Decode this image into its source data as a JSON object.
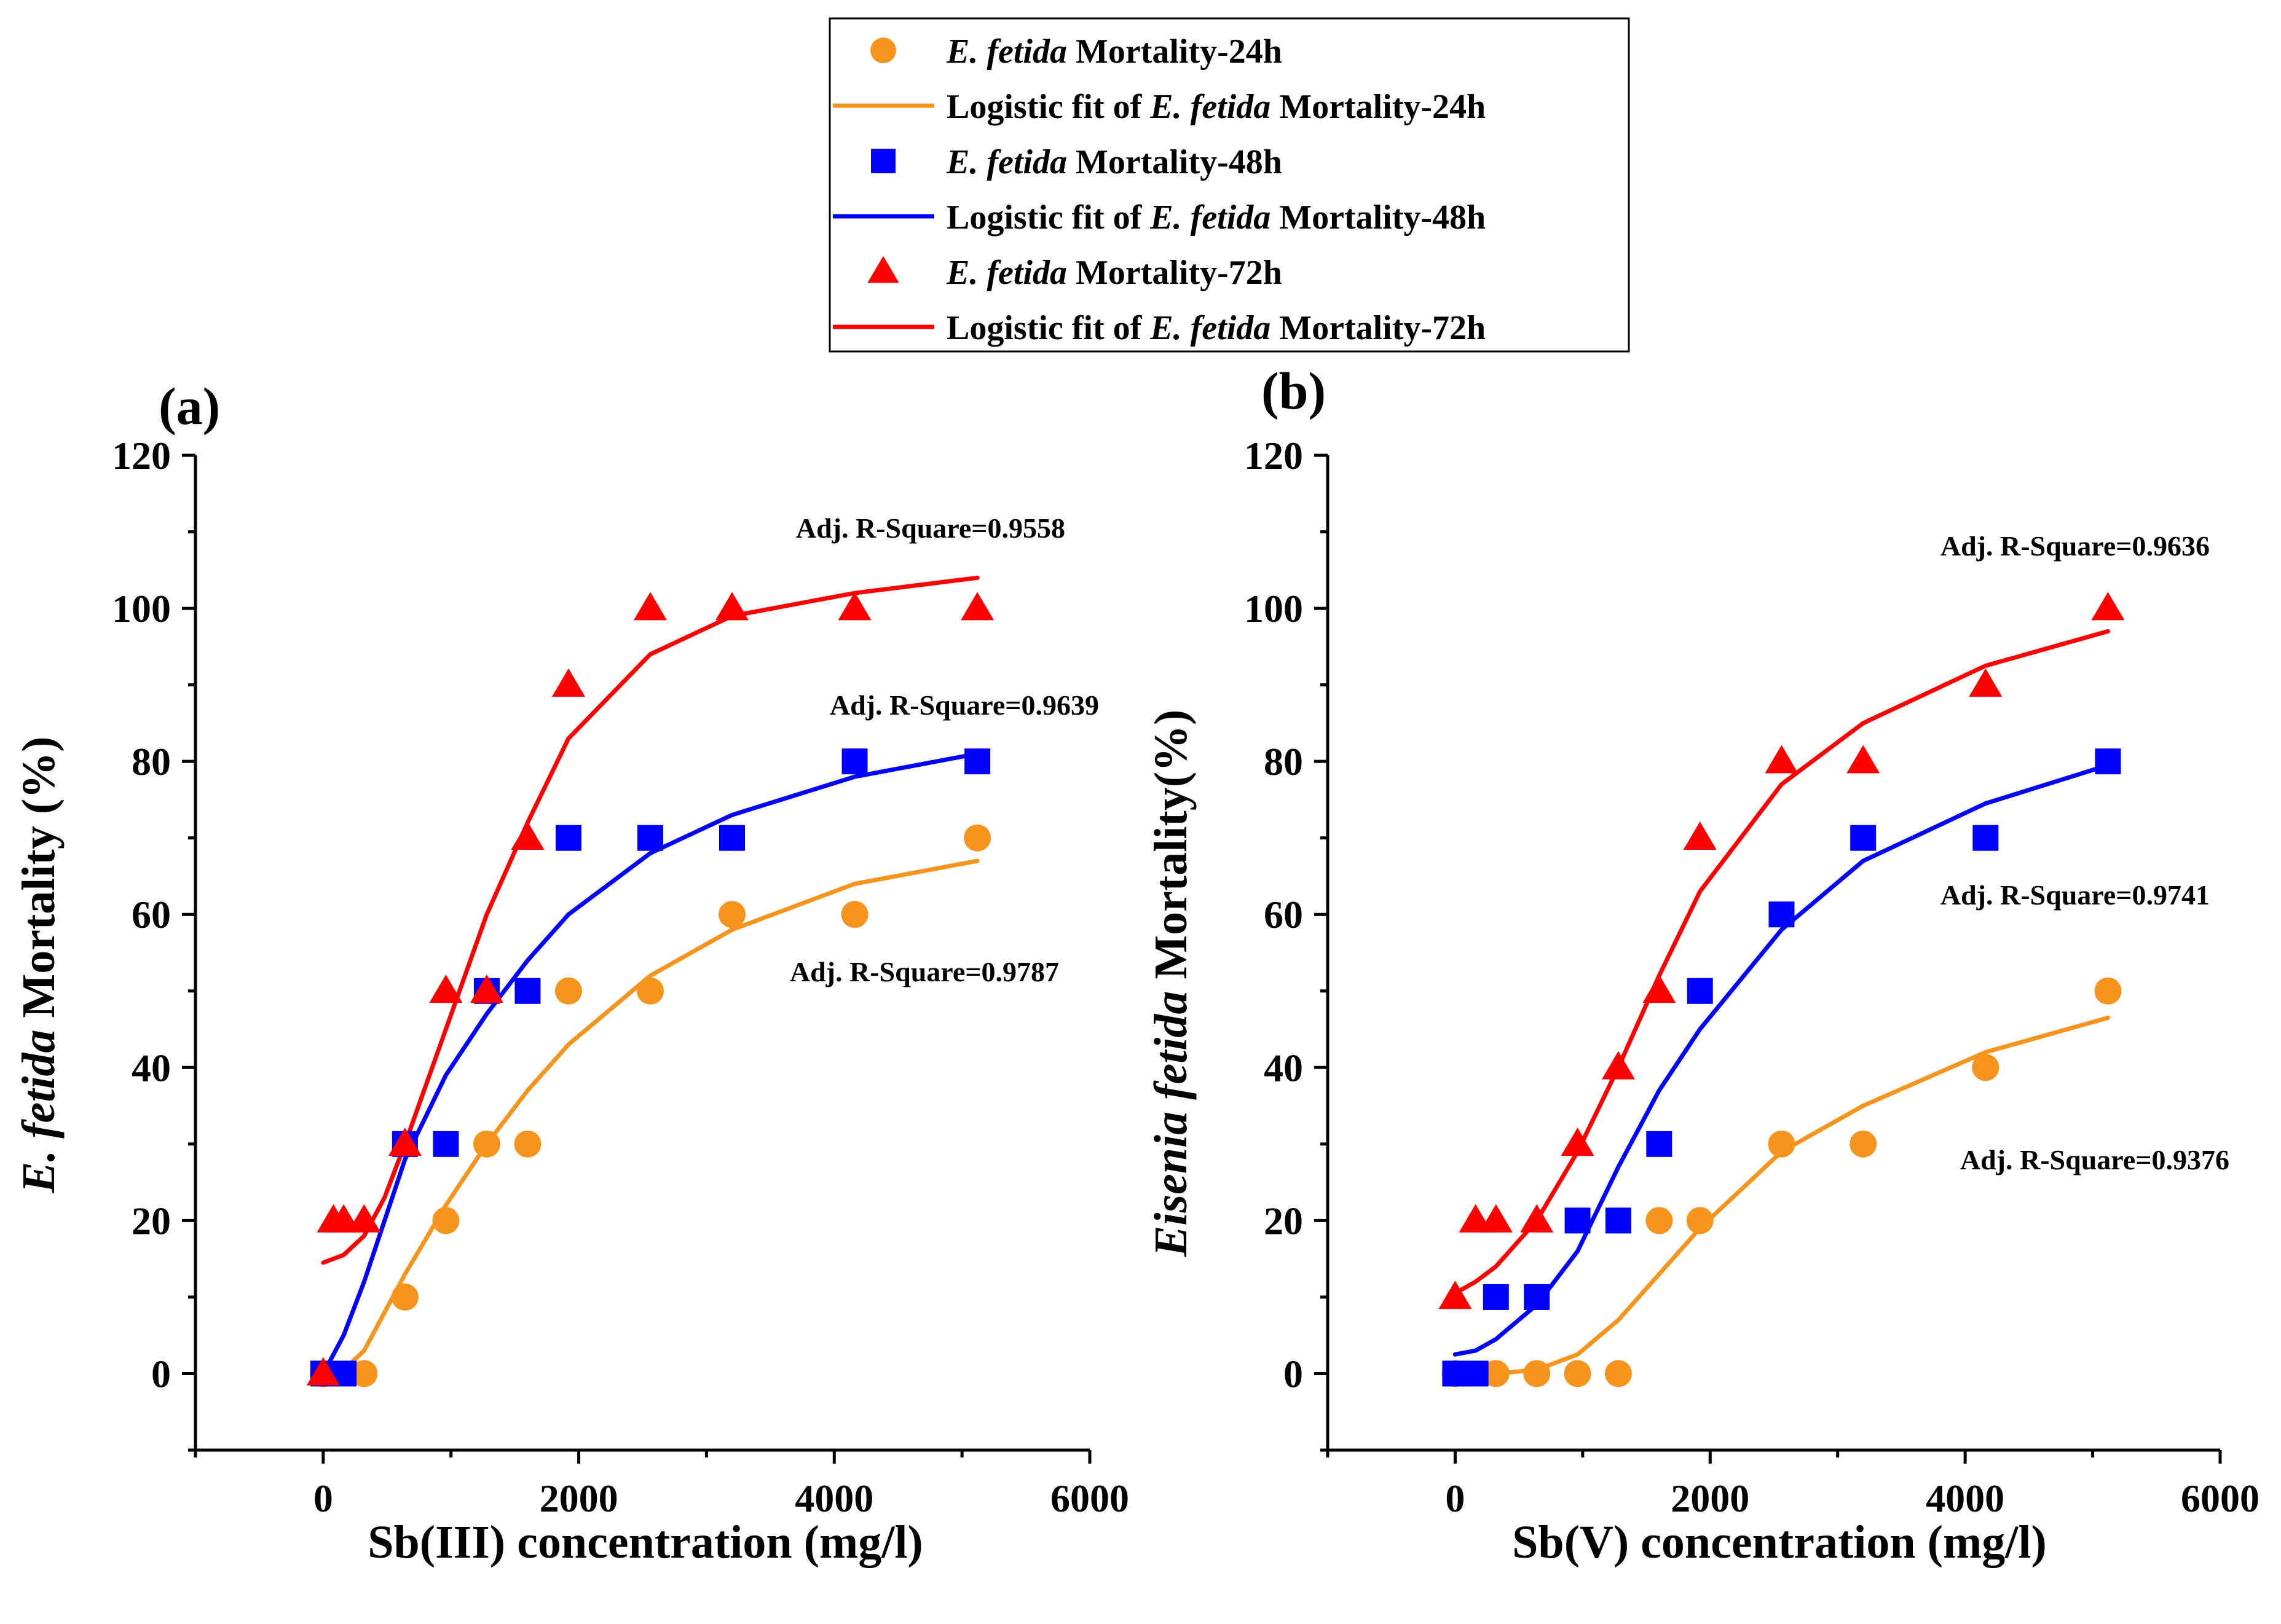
{
  "legend": {
    "entries": [
      {
        "kind": "marker",
        "series": "24h",
        "italic": "E. fetida",
        "text": " Mortality-24h"
      },
      {
        "kind": "line",
        "series": "24h",
        "pre": "Logistic fit of ",
        "italic": "E. fetida",
        "text": " Mortality-24h"
      },
      {
        "kind": "marker",
        "series": "48h",
        "italic": "E. fetida",
        "text": " Mortality-48h"
      },
      {
        "kind": "line",
        "series": "48h",
        "pre": "Logistic fit of ",
        "italic": "E. fetida",
        "text": " Mortality-48h"
      },
      {
        "kind": "marker",
        "series": "72h",
        "italic": "E. fetida",
        "text": " Mortality-72h"
      },
      {
        "kind": "line",
        "series": "72h",
        "pre": "Logistic fit of ",
        "italic": "E. fetida",
        "text": " Mortality-72h"
      }
    ]
  },
  "colors": {
    "24h": "#F7941D",
    "48h": "#0000FF",
    "72h": "#FF0000"
  },
  "markers": {
    "24h": "circle",
    "48h": "square",
    "72h": "triangle"
  },
  "chart_data": [
    {
      "type": "scatter",
      "panel_label": "(a)",
      "xlabel": "Sb(III) concentration (mg/l)",
      "ylabel_italic": "E. fetida",
      "ylabel_rest": " Mortality (%)",
      "xlim": [
        -1000,
        6000
      ],
      "ylim": [
        -10,
        120
      ],
      "xticks": [
        0,
        2000,
        4000,
        6000
      ],
      "yticks": [
        0,
        20,
        40,
        60,
        80,
        100,
        120
      ],
      "series": [
        {
          "name": "E. fetida Mortality-24h",
          "key": "24h",
          "x": [
            0,
            320,
            640,
            960,
            1280,
            1600,
            1920,
            2560,
            3200,
            4160,
            5120
          ],
          "y": [
            0,
            0,
            10,
            20,
            30,
            30,
            50,
            50,
            60,
            60,
            70
          ],
          "fit_x": [
            0,
            160,
            320,
            640,
            960,
            1280,
            1600,
            1920,
            2560,
            3200,
            4160,
            5120
          ],
          "fit_y": [
            0,
            0.5,
            3,
            13,
            22,
            30,
            37,
            43,
            52,
            58,
            64,
            67
          ],
          "adj_r2": "Adj. R-Square=0.9787"
        },
        {
          "name": "E. fetida Mortality-48h",
          "key": "48h",
          "x": [
            0,
            160,
            640,
            960,
            1280,
            1600,
            1920,
            2560,
            3200,
            4160,
            5120
          ],
          "y": [
            0,
            0,
            30,
            30,
            50,
            50,
            70,
            70,
            70,
            80,
            80
          ],
          "fit_x": [
            0,
            160,
            320,
            640,
            960,
            1280,
            1600,
            1920,
            2560,
            3200,
            4160,
            5120
          ],
          "fit_y": [
            0,
            5,
            12,
            28,
            39,
            47,
            54,
            60,
            68,
            73,
            78,
            81
          ],
          "adj_r2": "Adj. R-Square=0.9639"
        },
        {
          "name": "E. fetida Mortality-72h",
          "key": "72h",
          "x": [
            0,
            80,
            160,
            320,
            640,
            960,
            1280,
            1600,
            1920,
            2560,
            3200,
            4160,
            5120
          ],
          "y": [
            0,
            20,
            20,
            20,
            30,
            50,
            50,
            70,
            90,
            100,
            100,
            100,
            100
          ],
          "fit_x": [
            0,
            160,
            320,
            480,
            640,
            960,
            1280,
            1600,
            1920,
            2560,
            3200,
            4160,
            5120
          ],
          "fit_y": [
            14.5,
            15.5,
            18,
            23,
            30,
            45,
            60,
            72,
            83,
            94,
            99,
            102,
            104
          ],
          "adj_r2": "Adj. R-Square=0.9558"
        }
      ]
    },
    {
      "type": "scatter",
      "panel_label": "(b)",
      "xlabel": "Sb(V) concentration (mg/l)",
      "ylabel_italic": "Eisenia fetida",
      "ylabel_rest": " Mortality(%)",
      "xlim": [
        -1000,
        6000
      ],
      "ylim": [
        -10,
        120
      ],
      "xticks": [
        0,
        2000,
        4000,
        6000
      ],
      "yticks": [
        0,
        20,
        40,
        60,
        80,
        100,
        120
      ],
      "series": [
        {
          "name": "E. fetida Mortality-24h",
          "key": "24h",
          "x": [
            0,
            320,
            640,
            960,
            1280,
            1600,
            1920,
            2560,
            3200,
            4160,
            5120
          ],
          "y": [
            0,
            0,
            0,
            0,
            0,
            20,
            20,
            30,
            30,
            40,
            50
          ],
          "fit_x": [
            0,
            320,
            640,
            960,
            1280,
            1600,
            1920,
            2560,
            3200,
            4160,
            5120
          ],
          "fit_y": [
            0,
            0,
            0.5,
            2.5,
            7,
            13,
            19,
            29,
            35,
            42,
            46.5
          ],
          "adj_r2": "Adj. R-Square=0.9376"
        },
        {
          "name": "E. fetida Mortality-48h",
          "key": "48h",
          "x": [
            0,
            160,
            320,
            640,
            960,
            1280,
            1600,
            1920,
            2560,
            3200,
            4160,
            5120
          ],
          "y": [
            0,
            0,
            10,
            10,
            20,
            20,
            30,
            50,
            60,
            70,
            70,
            80
          ],
          "fit_x": [
            0,
            160,
            320,
            640,
            960,
            1280,
            1600,
            1920,
            2560,
            3200,
            4160,
            5120
          ],
          "fit_y": [
            2.5,
            3,
            4.5,
            9,
            16,
            27,
            37,
            45,
            58,
            67,
            74.5,
            79.5
          ],
          "adj_r2": "Adj. R-Square=0.9741"
        },
        {
          "name": "E. fetida Mortality-72h",
          "key": "72h",
          "x": [
            0,
            160,
            320,
            640,
            960,
            1280,
            1600,
            1920,
            2560,
            3200,
            4160,
            5120
          ],
          "y": [
            10,
            20,
            20,
            20,
            30,
            40,
            50,
            70,
            80,
            80,
            90,
            100
          ],
          "fit_x": [
            0,
            160,
            320,
            640,
            960,
            1280,
            1600,
            1920,
            2560,
            3200,
            4160,
            5120
          ],
          "fit_y": [
            10.5,
            12,
            14,
            20,
            29,
            40,
            52,
            63,
            77,
            85,
            92.5,
            97
          ],
          "adj_r2": "Adj. R-Square=0.9636"
        }
      ]
    }
  ]
}
